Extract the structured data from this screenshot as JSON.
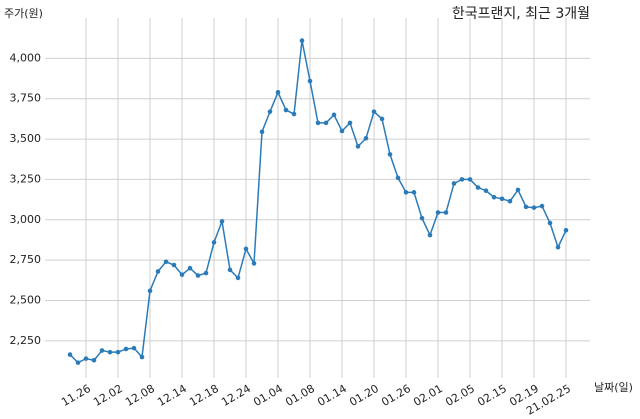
{
  "chart_data": {
    "type": "line",
    "title": "한국프랜지, 최근 3개월",
    "y_label": "주가(원)",
    "x_label": "날짜(일)",
    "categories": [
      null,
      null,
      "11.26",
      null,
      null,
      null,
      "12.02",
      null,
      null,
      null,
      "12.08",
      null,
      null,
      null,
      "12.14",
      null,
      null,
      null,
      "12.18",
      null,
      null,
      null,
      "12.24",
      null,
      null,
      null,
      "01.04",
      null,
      null,
      null,
      "01.08",
      null,
      null,
      null,
      "01.14",
      null,
      null,
      null,
      "01.20",
      null,
      null,
      null,
      "01.26",
      null,
      null,
      null,
      "02.01",
      null,
      null,
      null,
      "02.05",
      null,
      null,
      null,
      "02.15",
      null,
      null,
      null,
      "02.19",
      null,
      null,
      null,
      "21.02.25"
    ],
    "series": [
      {
        "name": "주가",
        "color": "#2b7bb9",
        "values": [
          2165,
          2115,
          2140,
          2130,
          2190,
          2180,
          2180,
          2200,
          2205,
          2150,
          2560,
          2680,
          2740,
          2720,
          2660,
          2700,
          2655,
          2670,
          2860,
          2990,
          2690,
          2640,
          2820,
          2730,
          3545,
          3670,
          3790,
          3680,
          3655,
          4110,
          3860,
          3600,
          3600,
          3650,
          3550,
          3600,
          3455,
          3505,
          3670,
          3625,
          3405,
          3260,
          3170,
          3170,
          3010,
          2905,
          3045,
          3045,
          3225,
          3250,
          3250,
          3200,
          3180,
          3140,
          3130,
          3115,
          3185,
          3080,
          3075,
          3085,
          2980,
          2830,
          2935
        ]
      }
    ],
    "ylim": [
      2020,
      4250
    ],
    "yticks": [
      {
        "value": 2250,
        "label": "2,250"
      },
      {
        "value": 2500,
        "label": "2,500"
      },
      {
        "value": 2750,
        "label": "2,750"
      },
      {
        "value": 3000,
        "label": "3,000"
      },
      {
        "value": 3250,
        "label": "3,250"
      },
      {
        "value": 3500,
        "label": "3,500"
      },
      {
        "value": 3750,
        "label": "3,750"
      },
      {
        "value": 4000,
        "label": "4,000"
      }
    ],
    "grid": true
  }
}
